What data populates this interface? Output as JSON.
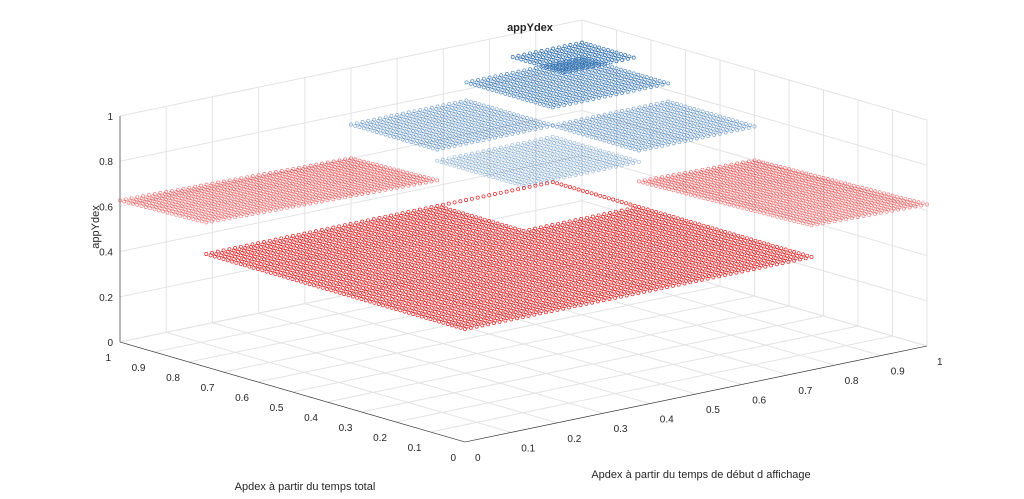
{
  "chart_data": {
    "type": "scatter3d",
    "title": "appYdex",
    "xlabel": "Apdex à partir du temps total",
    "ylabel": "Apdex à partir du temps de début d affichage",
    "zlabel": "appYdex",
    "xlim": [
      0,
      1
    ],
    "ylim": [
      0,
      1
    ],
    "zlim": [
      0,
      1
    ],
    "xticks": [
      "0",
      "0.1",
      "0.2",
      "0.3",
      "0.4",
      "0.5",
      "0.6",
      "0.7",
      "0.8",
      "0.9",
      "1"
    ],
    "yticks": [
      "0",
      "0.1",
      "0.2",
      "0.3",
      "0.4",
      "0.5",
      "0.6",
      "0.7",
      "0.8",
      "0.9",
      "1"
    ],
    "zticks": [
      "0",
      "0.2",
      "0.4",
      "0.6",
      "0.8",
      "1"
    ],
    "grid": true,
    "marker": "circle",
    "colormap": [
      "#e31a1c",
      "#2166ac"
    ],
    "plateaus": [
      {
        "x": [
          0,
          0.75
        ],
        "y": [
          0,
          0.75
        ],
        "z_start": 0.5,
        "z_end": 0.5,
        "exclude": {
          "x": [
            0.5,
            0.75
          ],
          "y": [
            0.5,
            0.75
          ]
        }
      },
      {
        "x": [
          0.75,
          1.0
        ],
        "y": [
          0,
          0.5
        ],
        "z_start": 0.64,
        "z_end": 0.6
      },
      {
        "x": [
          0,
          0.5
        ],
        "y": [
          0.75,
          1.0
        ],
        "z_start": 0.64,
        "z_end": 0.6
      },
      {
        "x": [
          0.5,
          0.75
        ],
        "y": [
          0.5,
          0.75
        ],
        "z_start": 0.7,
        "z_end": 0.7
      },
      {
        "x": [
          0.75,
          1.0
        ],
        "y": [
          0.5,
          0.75
        ],
        "z_start": 0.75,
        "z_end": 0.75
      },
      {
        "x": [
          0.5,
          0.75
        ],
        "y": [
          0.75,
          1.0
        ],
        "z_start": 0.75,
        "z_end": 0.75
      },
      {
        "x": [
          0.75,
          1.0
        ],
        "y": [
          0.75,
          1.0
        ],
        "z_start": 0.83,
        "z_end": 0.83
      },
      {
        "x": [
          0.85,
          1.0
        ],
        "y": [
          0.85,
          1.0
        ],
        "z_start": 0.9,
        "z_end": 0.9
      }
    ]
  }
}
